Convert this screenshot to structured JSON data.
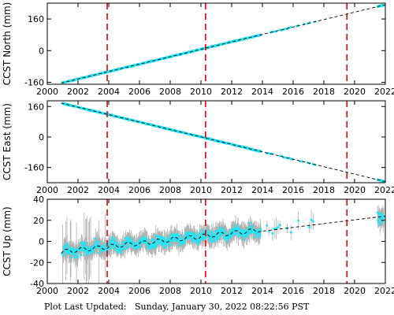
{
  "chart_data": [
    {
      "type": "scatter",
      "ylabel": "CCST North (mm)",
      "xlim": [
        2000,
        2022
      ],
      "ylim": [
        -170,
        240
      ],
      "yticks": [
        -160,
        0,
        160
      ],
      "xticks": [
        2000,
        2002,
        2004,
        2006,
        2008,
        2010,
        2012,
        2014,
        2016,
        2018,
        2020,
        2022
      ],
      "trend": {
        "x": [
          2000.9,
          2022.0
        ],
        "y": [
          -164,
          232
        ]
      },
      "event_lines": [
        2003.9,
        2010.3,
        2019.5
      ],
      "colors": {
        "points": "#22e5f5",
        "error_bars": "#b0b0b0",
        "trend": "#000000",
        "events": "#e8000a"
      }
    },
    {
      "type": "scatter",
      "ylabel": "CCST East (mm)",
      "xlim": [
        2000,
        2022
      ],
      "ylim": [
        -240,
        190
      ],
      "yticks": [
        -160,
        0,
        160
      ],
      "xticks": [
        2000,
        2002,
        2004,
        2006,
        2008,
        2010,
        2012,
        2014,
        2016,
        2018,
        2020,
        2022
      ],
      "trend": {
        "x": [
          2000.9,
          2022.0
        ],
        "y": [
          178,
          -234
        ]
      },
      "event_lines": [
        2003.9,
        2010.3,
        2019.5
      ],
      "colors": {
        "points": "#22e5f5",
        "error_bars": "#b0b0b0",
        "trend": "#000000",
        "events": "#e8000a"
      }
    },
    {
      "type": "scatter",
      "ylabel": "CCST Up (mm)",
      "xlim": [
        2000,
        2022
      ],
      "ylim": [
        -40,
        40
      ],
      "yticks": [
        -40,
        -20,
        0,
        20,
        40
      ],
      "xticks": [
        2000,
        2002,
        2004,
        2006,
        2008,
        2010,
        2012,
        2014,
        2016,
        2018,
        2020,
        2022
      ],
      "trend": {
        "x": [
          2000.9,
          2022.0
        ],
        "y": [
          -10,
          24
        ]
      },
      "event_lines": [
        2003.9,
        2010.3,
        2019.5
      ],
      "colors": {
        "points": "#22e5f5",
        "error_bars": "#b0b0b0",
        "trend": "#000000",
        "events": "#e8000a"
      }
    }
  ],
  "footer": {
    "label": "Plot Last Updated:",
    "value": "Sunday, January 30, 2022 08:22:56 PST"
  }
}
